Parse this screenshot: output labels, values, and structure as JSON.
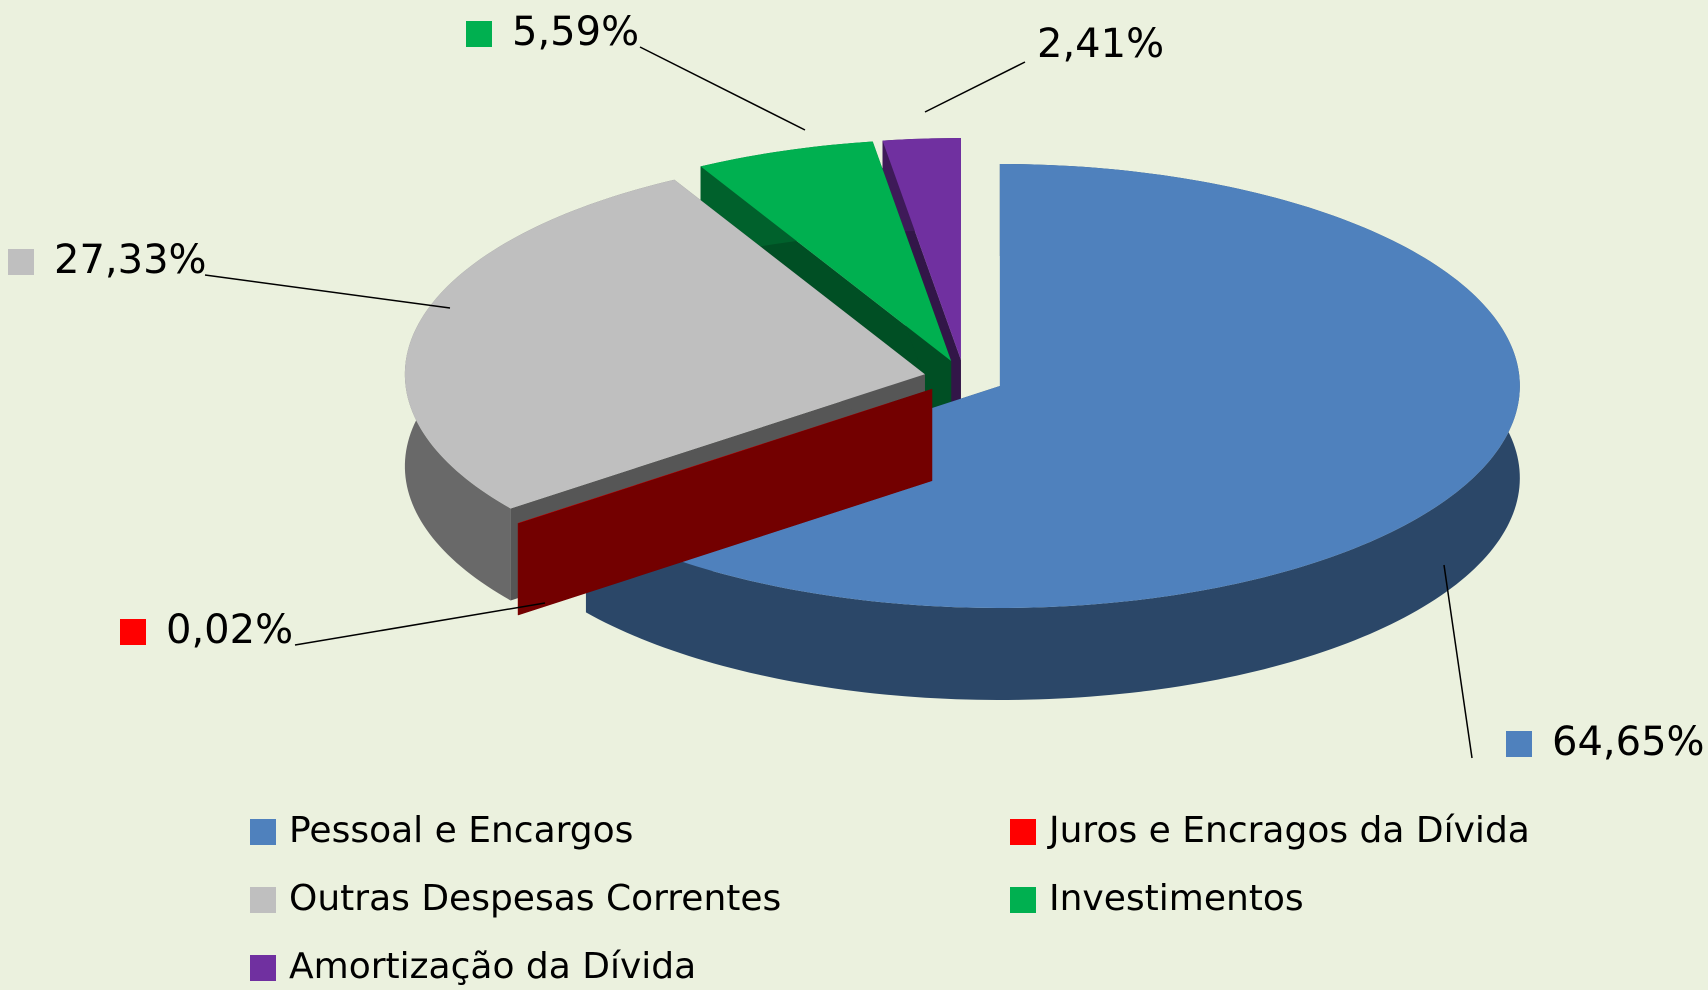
{
  "chart_data": {
    "type": "pie",
    "categories": [
      "Pessoal e Encargos",
      "Juros e Encragos da Dívida",
      "Outras Despesas Correntes",
      "Investimentos",
      "Amortização da Dívida"
    ],
    "values": [
      64.65,
      0.02,
      27.33,
      5.59,
      2.41
    ],
    "value_labels": [
      "64,65%",
      "0,02%",
      "27,33%",
      "5,59%",
      "2,41%"
    ],
    "colors": [
      "#4f81bd",
      "#ff0000",
      "#bfbfbf",
      "#00b050",
      "#7030a0"
    ],
    "legend": "bottom"
  }
}
